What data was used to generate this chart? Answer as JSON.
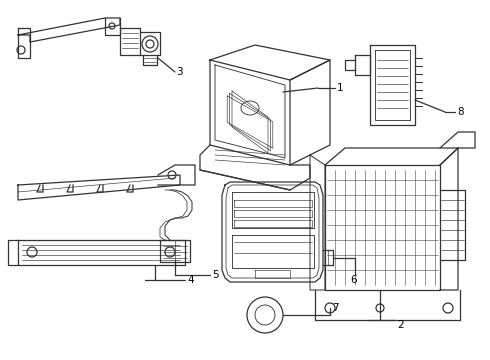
{
  "background_color": "#ffffff",
  "line_color": "#333333",
  "text_color": "#000000",
  "fig_width": 4.9,
  "fig_height": 3.6,
  "dpi": 100,
  "lw": 0.9
}
